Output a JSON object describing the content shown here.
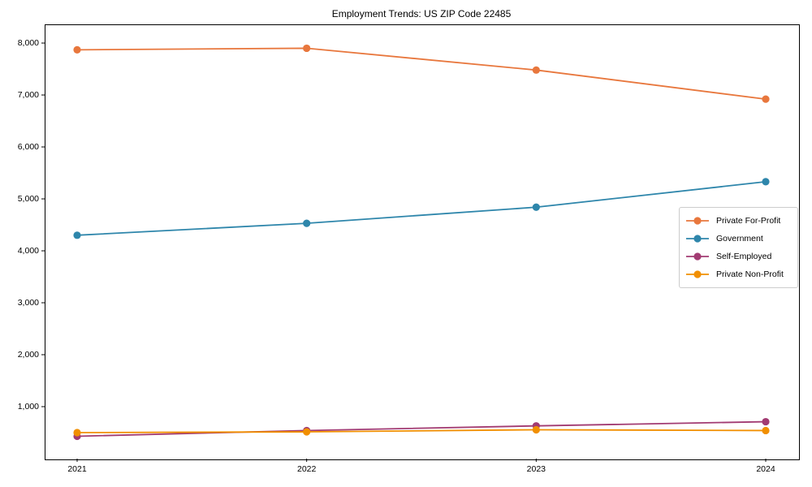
{
  "chart_data": {
    "type": "line",
    "title": "Employment Trends: US ZIP Code 22485",
    "xlabel": "",
    "ylabel": "",
    "categories": [
      "2021",
      "2022",
      "2023",
      "2024"
    ],
    "series": [
      {
        "name": "Private For-Profit",
        "color": "#e8773d",
        "values": [
          7870,
          7900,
          7480,
          6920
        ]
      },
      {
        "name": "Government",
        "color": "#2e86ab",
        "values": [
          4300,
          4530,
          4840,
          5330
        ]
      },
      {
        "name": "Self-Employed",
        "color": "#a23b72",
        "values": [
          430,
          540,
          630,
          710
        ]
      },
      {
        "name": "Private Non-Profit",
        "color": "#f18f01",
        "values": [
          500,
          515,
          555,
          540
        ]
      }
    ],
    "yticks": [
      1000,
      2000,
      3000,
      4000,
      5000,
      6000,
      7000,
      8000
    ],
    "ytick_labels": [
      "1,000",
      "2,000",
      "3,000",
      "4,000",
      "5,000",
      "6,000",
      "7,000",
      "8,000"
    ],
    "ylim": [
      0,
      8360
    ],
    "grid": false,
    "legend_position": "center-right",
    "marker": "circle",
    "background_color": "#ffffff",
    "spine_color": "#000000"
  }
}
